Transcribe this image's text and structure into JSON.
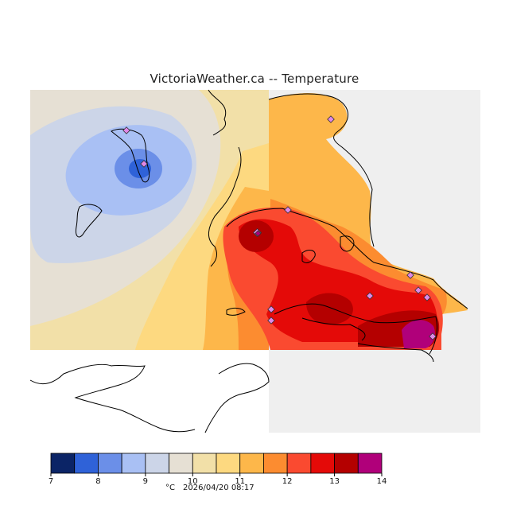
{
  "title": "VictoriaWeather.ca -- Temperature",
  "legend": {
    "units": "°C",
    "timestamp": "2026/04/20 08:17",
    "ticks": [
      7,
      8,
      9,
      10,
      11,
      12,
      13,
      14
    ],
    "bins": [
      {
        "from": 7.0,
        "to": 7.5,
        "color": "#0b2466"
      },
      {
        "from": 7.5,
        "to": 8.0,
        "color": "#2f62d8"
      },
      {
        "from": 8.0,
        "to": 8.5,
        "color": "#6b8fe8"
      },
      {
        "from": 8.5,
        "to": 9.0,
        "color": "#a9c0f4"
      },
      {
        "from": 9.0,
        "to": 9.5,
        "color": "#ccd5e8"
      },
      {
        "from": 9.5,
        "to": 10.0,
        "color": "#e6e0d4"
      },
      {
        "from": 10.0,
        "to": 10.5,
        "color": "#f2e0a8"
      },
      {
        "from": 10.5,
        "to": 11.0,
        "color": "#fdd980"
      },
      {
        "from": 11.0,
        "to": 11.5,
        "color": "#fdb74a"
      },
      {
        "from": 11.5,
        "to": 12.0,
        "color": "#fc8c30"
      },
      {
        "from": 12.0,
        "to": 12.5,
        "color": "#fa4a30"
      },
      {
        "from": 12.5,
        "to": 13.0,
        "color": "#e40a08"
      },
      {
        "from": 13.0,
        "to": 13.5,
        "color": "#b40000"
      },
      {
        "from": 13.5,
        "to": 14.0,
        "color": "#b0007a"
      }
    ]
  },
  "map": {
    "no_data_color": "#efefef",
    "station_marker_color": "#e088e8"
  }
}
